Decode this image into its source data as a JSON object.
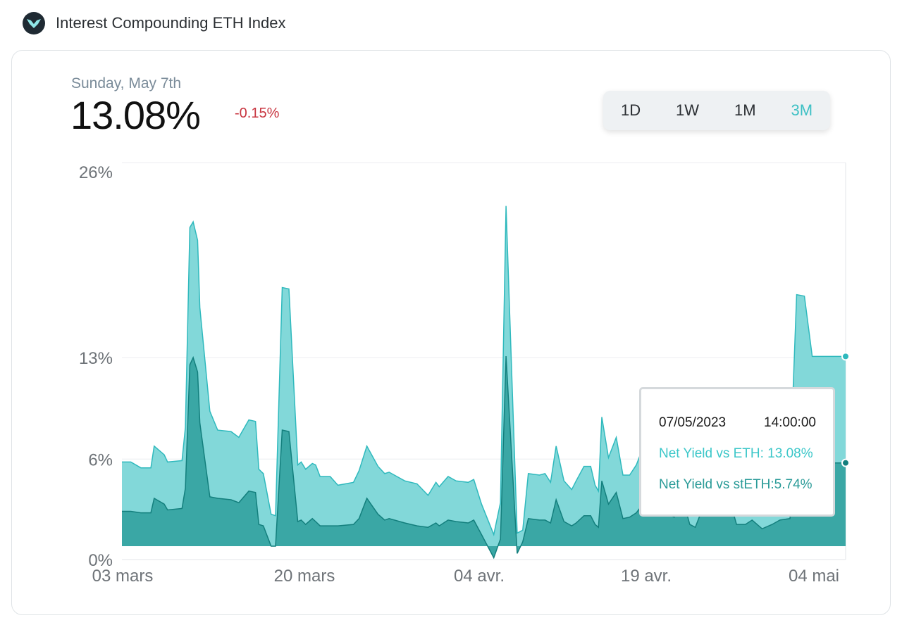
{
  "header": {
    "title": "Interest Compounding ETH Index"
  },
  "summary": {
    "date": "Sunday, May 7th",
    "value": "13.08%",
    "change": "-0.15%"
  },
  "range_buttons": {
    "active": "3M",
    "items": [
      "1D",
      "1W",
      "1M",
      "3M"
    ]
  },
  "tooltip": {
    "date": "07/05/2023",
    "time": "14:00:00",
    "eth_label": "Net Yield vs ETH: ",
    "eth_value": "13.08%",
    "steth_label": "Net Yield vs stETH:",
    "steth_value": "5.74%"
  },
  "colors": {
    "eth_area": "#82d8d9",
    "eth_line": "#2fb9bd",
    "steth_area": "#3aa7a5",
    "steth_line": "#137f7d",
    "negative": "#c8343f"
  },
  "chart_data": {
    "type": "area",
    "x_labels": [
      "03 mars",
      "20 mars",
      "04 avr.",
      "19 avr.",
      "04 mai"
    ],
    "x_range": [
      0,
      65
    ],
    "y_ticks": [
      "0%",
      "6%",
      "13%",
      "26%"
    ],
    "y_tick_values": [
      0,
      6,
      13,
      26
    ],
    "ylim": [
      0,
      26
    ],
    "grid": true,
    "series": [
      {
        "name": "Net Yield vs ETH",
        "x": [
          0,
          0.8,
          1.7,
          2.6,
          2.9,
          3.8,
          4.1,
          5.4,
          5.7,
          6.1,
          6.4,
          6.8,
          7.0,
          7.9,
          8.6,
          9.8,
          10.5,
          11.4,
          12.0,
          12.3,
          12.7,
          13.4,
          13.8,
          14.4,
          15.0,
          15.8,
          16.1,
          16.5,
          17.1,
          17.4,
          17.8,
          18.7,
          19.4,
          20.8,
          21.3,
          22.0,
          23.0,
          23.6,
          24.0,
          25.4,
          26.5,
          27.5,
          28.2,
          28.5,
          29.3,
          30.0,
          31.1,
          31.6,
          32.3,
          33.4,
          34.0,
          34.5,
          35.5,
          36.0,
          36.5,
          37.5,
          38.0,
          38.5,
          39.0,
          39.7,
          40.4,
          40.8,
          41.5,
          42.1,
          42.5,
          42.8,
          43.1,
          43.7,
          44.4,
          45.0,
          45.6,
          46.2,
          47.0,
          47.9,
          48.4,
          48.9,
          49.6,
          50.0,
          50.4,
          51.0,
          51.5,
          52.2,
          53.0,
          53.5,
          54.0,
          54.8,
          55.2,
          56.0,
          56.6,
          57.5,
          58.4,
          59.1,
          60.0,
          60.6,
          61.3,
          62.0,
          62.6,
          63.3,
          64.1,
          64.8,
          65.0
        ],
        "values": [
          5.8,
          5.8,
          5.4,
          5.4,
          6.9,
          6.3,
          5.8,
          5.9,
          8.2,
          22.1,
          22.5,
          21.2,
          16.5,
          9.3,
          8.0,
          7.9,
          7.5,
          8.7,
          8.6,
          5.3,
          5.0,
          2.2,
          2.1,
          17.9,
          17.8,
          5.6,
          5.8,
          5.3,
          5.7,
          5.6,
          4.8,
          4.8,
          4.2,
          4.4,
          5.2,
          6.9,
          5.5,
          5.0,
          5.1,
          4.5,
          4.3,
          3.5,
          4.4,
          4.1,
          4.8,
          4.5,
          4.4,
          4.6,
          2.9,
          0.8,
          3.0,
          23.6,
          0.9,
          1.1,
          5.0,
          4.9,
          5.0,
          4.4,
          6.9,
          4.5,
          3.9,
          4.5,
          5.5,
          5.5,
          4.2,
          3.8,
          8.9,
          6.1,
          7.5,
          4.9,
          4.9,
          5.6,
          7.2,
          6.3,
          8.0,
          5.9,
          5.2,
          7.8,
          7.6,
          4.2,
          3.6,
          6.4,
          6.0,
          5.5,
          6.1,
          6.1,
          4.1,
          4.1,
          4.8,
          3.2,
          4.1,
          4.8,
          5.0,
          17.4,
          17.3,
          13.08,
          13.08,
          13.08,
          13.08,
          13.08,
          13.08
        ]
      },
      {
        "name": "Net Yield vs stETH",
        "x": [
          0,
          0.8,
          1.7,
          2.6,
          2.9,
          3.8,
          4.1,
          5.4,
          5.7,
          6.1,
          6.4,
          6.8,
          7.0,
          7.9,
          8.6,
          9.8,
          10.5,
          11.4,
          12.0,
          12.3,
          12.7,
          13.4,
          13.8,
          14.4,
          15.0,
          15.8,
          16.1,
          16.5,
          17.1,
          17.4,
          17.8,
          18.7,
          19.4,
          20.8,
          21.3,
          22.0,
          23.0,
          23.6,
          24.0,
          25.4,
          26.5,
          27.5,
          28.2,
          28.5,
          29.3,
          30.0,
          31.1,
          31.6,
          32.3,
          33.4,
          34.0,
          34.5,
          35.5,
          36.0,
          36.5,
          37.5,
          38.0,
          38.5,
          39.0,
          39.7,
          40.4,
          40.8,
          41.5,
          42.1,
          42.5,
          42.8,
          43.1,
          43.7,
          44.4,
          45.0,
          45.6,
          46.2,
          47.0,
          47.9,
          48.4,
          48.9,
          49.6,
          50.0,
          50.4,
          51.0,
          51.5,
          52.2,
          53.0,
          53.5,
          54.0,
          54.8,
          55.2,
          56.0,
          56.6,
          57.5,
          58.4,
          59.1,
          60.0,
          60.6,
          61.3,
          62.0,
          62.6,
          63.3,
          64.1,
          64.8,
          65.0
        ],
        "values": [
          2.4,
          2.4,
          2.3,
          2.3,
          3.3,
          2.9,
          2.5,
          2.6,
          4.0,
          12.5,
          13.0,
          12.0,
          8.5,
          3.4,
          3.3,
          3.2,
          3.0,
          3.8,
          3.7,
          1.5,
          1.4,
          0.0,
          0.0,
          8.0,
          7.9,
          1.7,
          1.8,
          1.5,
          1.9,
          1.7,
          1.4,
          1.4,
          1.4,
          1.5,
          1.9,
          3.3,
          2.2,
          1.8,
          1.9,
          1.6,
          1.4,
          1.3,
          1.6,
          1.4,
          1.8,
          1.7,
          1.6,
          1.8,
          0.8,
          -0.8,
          0.5,
          13.1,
          -0.5,
          0.3,
          1.9,
          1.8,
          1.8,
          1.6,
          3.2,
          1.7,
          1.4,
          1.6,
          2.1,
          2.1,
          1.5,
          1.3,
          4.5,
          2.9,
          3.7,
          1.9,
          2.0,
          2.3,
          3.1,
          2.7,
          3.5,
          2.3,
          2.0,
          3.3,
          3.2,
          1.5,
          1.3,
          2.7,
          2.5,
          2.3,
          2.6,
          2.6,
          1.5,
          1.5,
          1.8,
          1.2,
          1.5,
          1.8,
          1.9,
          6.5,
          6.4,
          5.74,
          5.74,
          5.74,
          5.74,
          5.74,
          5.74
        ]
      }
    ]
  }
}
